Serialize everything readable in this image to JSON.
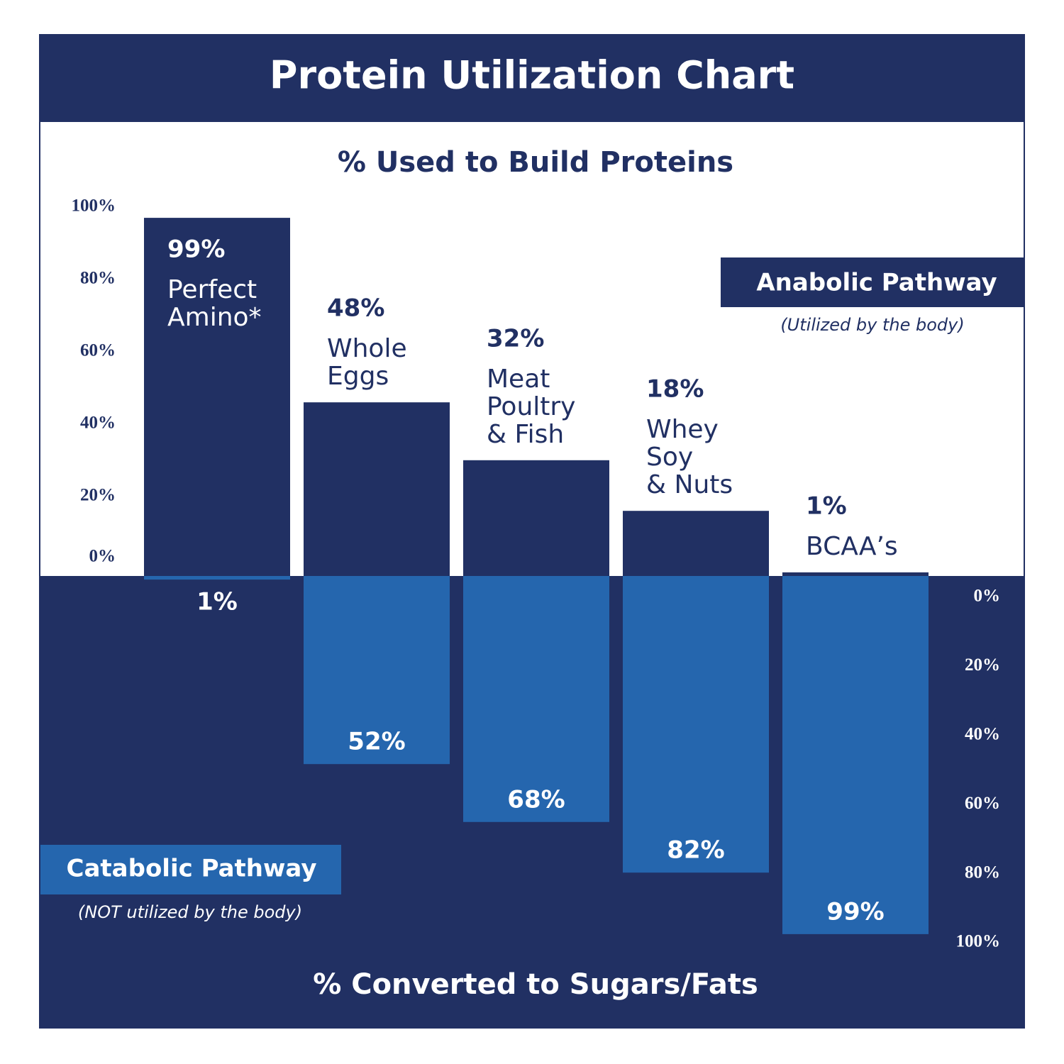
{
  "chart_data": {
    "type": "diverging-bar",
    "title": "Protein Utilization Chart",
    "top_label": "% Used to Build Proteins",
    "bottom_label": "% Converted to Sugars/Fats",
    "categories": [
      [
        "Perfect",
        "Amino*"
      ],
      [
        "Whole",
        "Eggs"
      ],
      [
        "Meat",
        "Poultry",
        "& Fish"
      ],
      [
        "Whey",
        "Soy",
        "& Nuts"
      ],
      [
        "BCAA’s"
      ]
    ],
    "series": [
      {
        "name": "Anabolic Pathway",
        "note": "(Utilized by the body)",
        "color": "#213063",
        "values": [
          99,
          48,
          32,
          18,
          1
        ],
        "value_labels": [
          "99%",
          "48%",
          "32%",
          "18%",
          "1%"
        ]
      },
      {
        "name": "Catabolic Pathway",
        "note": "(NOT utilized by the body)",
        "color": "#2566ae",
        "axis": "y2",
        "values": [
          1,
          52,
          68,
          82,
          99
        ],
        "value_labels": [
          "1%",
          "52%",
          "68%",
          "82%",
          "99%"
        ]
      }
    ],
    "ylim": [
      0,
      100
    ],
    "yticks": [
      {
        "value": 0,
        "label": "0%"
      },
      {
        "value": 20,
        "label": "20%"
      },
      {
        "value": 40,
        "label": "40%"
      },
      {
        "value": 60,
        "label": "60%"
      },
      {
        "value": 80,
        "label": "80%"
      },
      {
        "value": 100,
        "label": "100%"
      }
    ],
    "y2lim": [
      0,
      100
    ],
    "y2ticks": [
      {
        "value": 0,
        "label": "0%"
      },
      {
        "value": 20,
        "label": "20%"
      },
      {
        "value": 40,
        "label": "40%"
      },
      {
        "value": 60,
        "label": "60%"
      },
      {
        "value": 80,
        "label": "80%"
      },
      {
        "value": 100,
        "label": "100%"
      }
    ]
  }
}
